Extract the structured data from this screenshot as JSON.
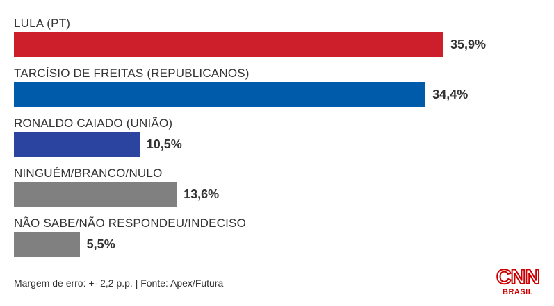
{
  "chart_data": {
    "type": "bar",
    "orientation": "horizontal",
    "categories": [
      "LULA (PT)",
      "TARCÍSIO DE FREITAS (REPUBLICANOS)",
      "RONALDO CAIADO (UNIÃO)",
      "NINGUÉM/BRANCO/NULO",
      "NÃO SABE/NÃO RESPONDEU/INDECISO"
    ],
    "values": [
      35.9,
      34.4,
      10.5,
      13.6,
      5.5
    ],
    "value_labels": [
      "35,9%",
      "34,4%",
      "10,5%",
      "13,6%",
      "5,5%"
    ],
    "colors": [
      "#cc1f2b",
      "#005baa",
      "#2a44a0",
      "#808080",
      "#808080"
    ],
    "grid": false,
    "legend": "none"
  },
  "footer": {
    "note": "Margem de erro: +- 2,2 p.p. | Fonte: Apex/Futura"
  },
  "logo": {
    "name": "CNN",
    "sub": "BRASIL",
    "color": "#cc0000"
  }
}
